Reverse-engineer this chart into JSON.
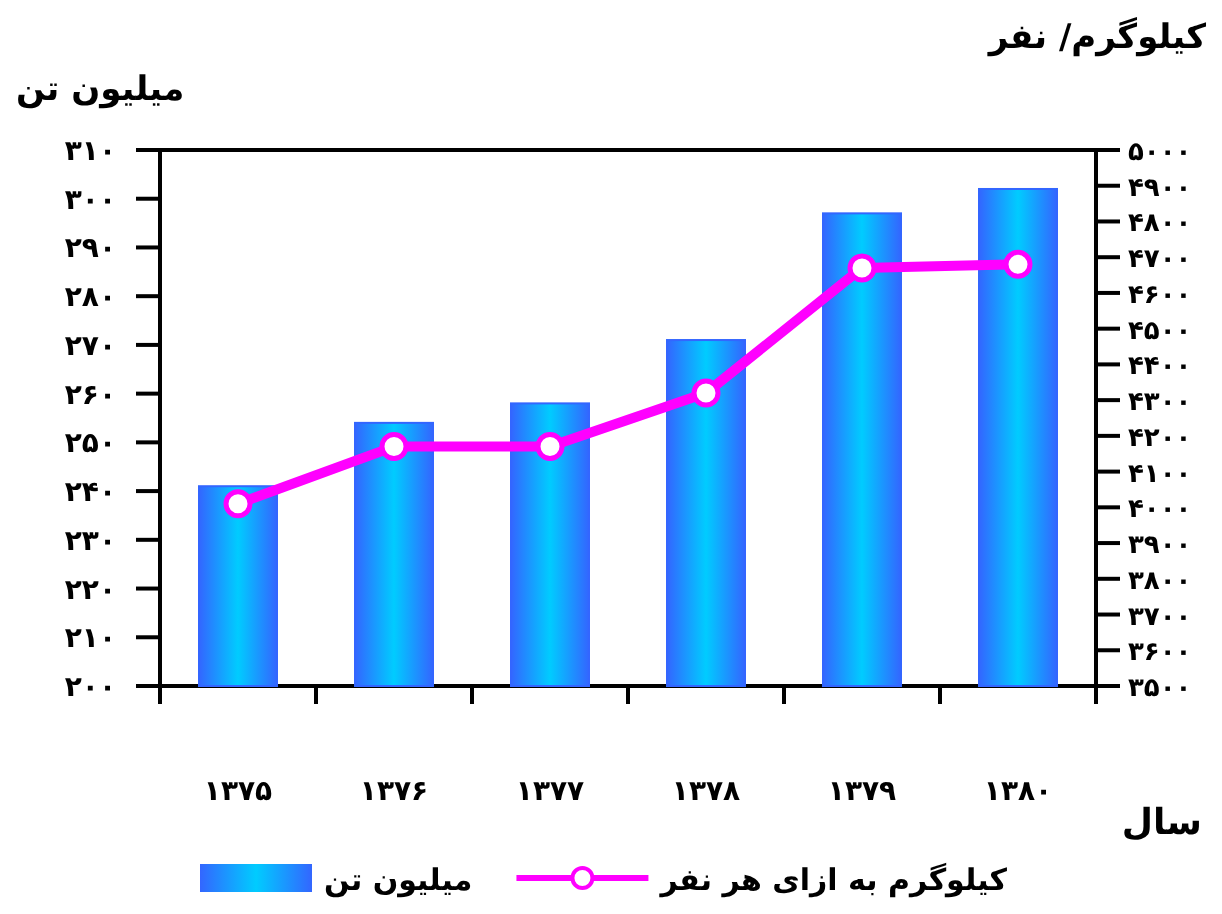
{
  "chart_data": {
    "type": "bar",
    "categories": [
      "۱۳۷۵",
      "۱۳۷۶",
      "۱۳۷۷",
      "۱۳۷۸",
      "۱۳۷۹",
      "۱۳۸۰"
    ],
    "xlabel": "سال",
    "ylabel": "میلیون تن",
    "y2label": "کیلوگرم/ نفر",
    "series": [
      {
        "name": "میلیون تن",
        "color": "#3366ff",
        "values": [
          241,
          254,
          258,
          271,
          297,
          302
        ]
      },
      {
        "name": "کیلوگرم به ازای هر نفر",
        "type": "line",
        "axis": "y2",
        "color": "#ff00ff",
        "values": [
          4010,
          4170,
          4170,
          4320,
          4670,
          4680
        ]
      }
    ],
    "ylim": [
      200,
      310
    ],
    "yticks": [
      {
        "value": 200,
        "label": "۲۰۰"
      },
      {
        "value": 210,
        "label": "۲۱۰"
      },
      {
        "value": 220,
        "label": "۲۲۰"
      },
      {
        "value": 230,
        "label": "۲۳۰"
      },
      {
        "value": 240,
        "label": "۲۴۰"
      },
      {
        "value": 250,
        "label": "۲۵۰"
      },
      {
        "value": 260,
        "label": "۲۶۰"
      },
      {
        "value": 270,
        "label": "۲۷۰"
      },
      {
        "value": 280,
        "label": "۲۸۰"
      },
      {
        "value": 290,
        "label": "۲۹۰"
      },
      {
        "value": 300,
        "label": "۳۰۰"
      },
      {
        "value": 310,
        "label": "۳۱۰"
      }
    ],
    "y2lim": [
      3500,
      5000
    ],
    "y2ticks": [
      {
        "value": 3500,
        "label": "۳۵۰۰"
      },
      {
        "value": 3600,
        "label": "۳۶۰۰"
      },
      {
        "value": 3700,
        "label": "۳۷۰۰"
      },
      {
        "value": 3800,
        "label": "۳۸۰۰"
      },
      {
        "value": 3900,
        "label": "۳۹۰۰"
      },
      {
        "value": 4000,
        "label": "۴۰۰۰"
      },
      {
        "value": 4100,
        "label": "۴۱۰۰"
      },
      {
        "value": 4200,
        "label": "۴۲۰۰"
      },
      {
        "value": 4300,
        "label": "۴۳۰۰"
      },
      {
        "value": 4400,
        "label": "۴۴۰۰"
      },
      {
        "value": 4500,
        "label": "۴۵۰۰"
      },
      {
        "value": 4600,
        "label": "۴۶۰۰"
      },
      {
        "value": 4700,
        "label": "۴۷۰۰"
      },
      {
        "value": 4800,
        "label": "۴۸۰۰"
      },
      {
        "value": 4900,
        "label": "۴۹۰۰"
      },
      {
        "value": 5000,
        "label": "۵۰۰۰"
      }
    ],
    "marker": "circle",
    "legend": "bottom",
    "grid": false
  }
}
